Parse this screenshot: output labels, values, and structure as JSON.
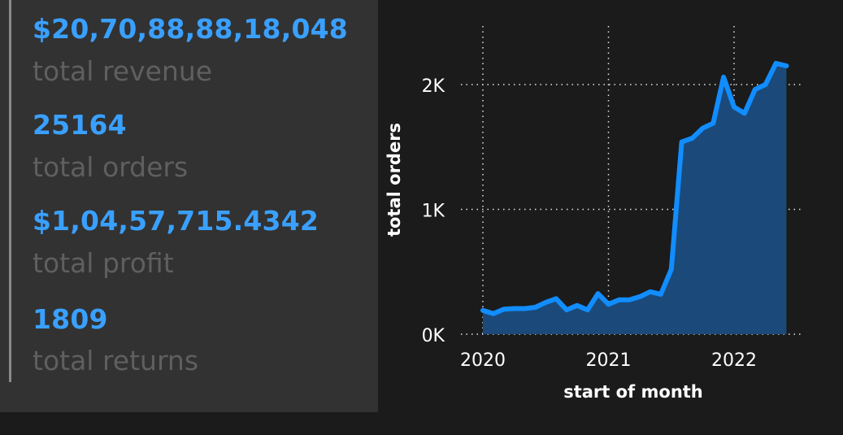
{
  "kpis": [
    {
      "value": "$20,70,88,88,18,048",
      "label": "total revenue"
    },
    {
      "value": "25164",
      "label": "total orders"
    },
    {
      "value": "$1,04,57,715.4342",
      "label": "total profit"
    },
    {
      "value": "1809",
      "label": "total returns"
    }
  ],
  "chart_data": {
    "type": "area",
    "xlabel": "start of month",
    "ylabel": "total orders",
    "x_ticks": [
      "2020",
      "2021",
      "2022"
    ],
    "y_ticks": [
      "0K",
      "1K",
      "2K"
    ],
    "ylim": [
      0,
      2300
    ],
    "grid": true,
    "series": [
      {
        "color": "#118dff",
        "fill": "#1b4a7a",
        "points": [
          {
            "x": "2020-01",
            "y": 190
          },
          {
            "x": "2020-02",
            "y": 165
          },
          {
            "x": "2020-03",
            "y": 200
          },
          {
            "x": "2020-04",
            "y": 205
          },
          {
            "x": "2020-05",
            "y": 205
          },
          {
            "x": "2020-06",
            "y": 215
          },
          {
            "x": "2020-07",
            "y": 255
          },
          {
            "x": "2020-08",
            "y": 285
          },
          {
            "x": "2020-09",
            "y": 195
          },
          {
            "x": "2020-10",
            "y": 230
          },
          {
            "x": "2020-11",
            "y": 195
          },
          {
            "x": "2020-12",
            "y": 325
          },
          {
            "x": "2021-01",
            "y": 240
          },
          {
            "x": "2021-02",
            "y": 275
          },
          {
            "x": "2021-03",
            "y": 275
          },
          {
            "x": "2021-04",
            "y": 300
          },
          {
            "x": "2021-05",
            "y": 340
          },
          {
            "x": "2021-06",
            "y": 320
          },
          {
            "x": "2021-07",
            "y": 520
          },
          {
            "x": "2021-08",
            "y": 1540
          },
          {
            "x": "2021-09",
            "y": 1570
          },
          {
            "x": "2021-10",
            "y": 1650
          },
          {
            "x": "2021-11",
            "y": 1690
          },
          {
            "x": "2021-12",
            "y": 2060
          },
          {
            "x": "2022-01",
            "y": 1820
          },
          {
            "x": "2022-02",
            "y": 1770
          },
          {
            "x": "2022-03",
            "y": 1960
          },
          {
            "x": "2022-04",
            "y": 2000
          },
          {
            "x": "2022-05",
            "y": 2170
          },
          {
            "x": "2022-06",
            "y": 2150
          }
        ]
      }
    ]
  }
}
